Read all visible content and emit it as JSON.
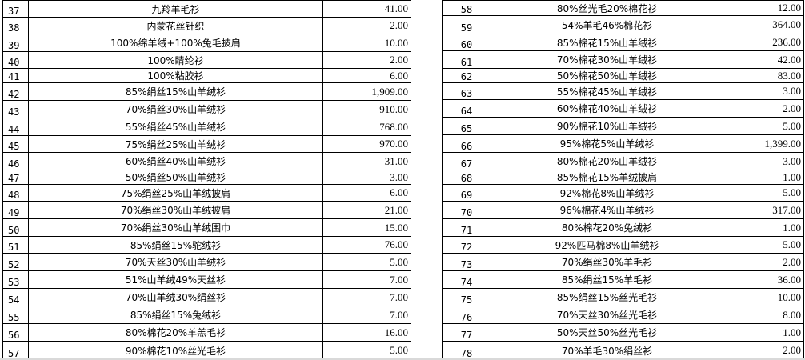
{
  "left_table": [
    {
      "no": "37",
      "name": "九羚羊毛衫",
      "value": "41.00"
    },
    {
      "no": "38",
      "name": "内蒙花丝针织",
      "value": "2.00"
    },
    {
      "no": "39",
      "name": "100%绵羊绒+100%兔毛披肩",
      "value": "10.00"
    },
    {
      "no": "40",
      "name": "100%睛纶衫",
      "value": "2.00"
    },
    {
      "no": "41",
      "name": "100%粘胶衫",
      "value": "6.00"
    },
    {
      "no": "42",
      "name": "85%绢丝15%山羊绒衫",
      "value": "1,909.00"
    },
    {
      "no": "43",
      "name": "70%绢丝30%山羊绒衫",
      "value": "910.00"
    },
    {
      "no": "44",
      "name": "55%绢丝45%山羊绒衫",
      "value": "768.00"
    },
    {
      "no": "45",
      "name": "75%绢丝25%山羊绒衫",
      "value": "970.00"
    },
    {
      "no": "46",
      "name": "60%绢丝40%山羊绒衫",
      "value": "31.00"
    },
    {
      "no": "47",
      "name": "50%绢丝50%山羊绒衫",
      "value": "3.00"
    },
    {
      "no": "48",
      "name": "75%绢丝25%山羊绒披肩",
      "value": "6.00"
    },
    {
      "no": "49",
      "name": "70%绢丝30%山羊绒披肩",
      "value": "21.00"
    },
    {
      "no": "50",
      "name": "70%绢丝30%山羊绒围巾",
      "value": "15.00"
    },
    {
      "no": "51",
      "name": "85%绢丝15%驼绒衫",
      "value": "76.00"
    },
    {
      "no": "52",
      "name": "70%天丝30%山羊绒衫",
      "value": "5.00"
    },
    {
      "no": "53",
      "name": "51%山羊绒49%天丝衫",
      "value": "7.00"
    },
    {
      "no": "54",
      "name": "70%山羊绒30%绢丝衫",
      "value": "7.00"
    },
    {
      "no": "55",
      "name": "85%绢丝15%兔绒衫",
      "value": "7.00"
    },
    {
      "no": "56",
      "name": "80%棉花20%羊羔毛衫",
      "value": "16.00"
    },
    {
      "no": "57",
      "name": "90%棉花10%丝光毛衫",
      "value": "5.00"
    }
  ],
  "right_table": [
    {
      "no": "58",
      "name": "80%丝光毛20%棉花衫",
      "value": "12.00"
    },
    {
      "no": "59",
      "name": "54%羊毛46%棉花衫",
      "value": "364.00"
    },
    {
      "no": "60",
      "name": "85%棉花15%山羊绒衫",
      "value": "236.00"
    },
    {
      "no": "61",
      "name": "70%棉花30%山羊绒衫",
      "value": "42.00"
    },
    {
      "no": "62",
      "name": "50%棉花50%山羊绒衫",
      "value": "83.00"
    },
    {
      "no": "63",
      "name": "55%棉花45%山羊绒衫",
      "value": "3.00"
    },
    {
      "no": "64",
      "name": "60%棉花40%山羊绒衫",
      "value": "2.00"
    },
    {
      "no": "65",
      "name": "90%棉花10%山羊绒衫",
      "value": "5.00"
    },
    {
      "no": "66",
      "name": "95%棉花5%山羊绒衫",
      "value": "1,399.00"
    },
    {
      "no": "67",
      "name": "80%棉花20%山羊绒衫",
      "value": "3.00"
    },
    {
      "no": "68",
      "name": "85%棉花15%羊绒披肩",
      "value": "1.00"
    },
    {
      "no": "69",
      "name": "92%棉花8%山羊绒衫",
      "value": "5.00"
    },
    {
      "no": "70",
      "name": "96%棉花4%山羊绒衫",
      "value": "317.00"
    },
    {
      "no": "71",
      "name": "80%棉花20%兔绒衫",
      "value": "1.00"
    },
    {
      "no": "72",
      "name": "92%匹马棉8%山羊绒衫",
      "value": "5.00"
    },
    {
      "no": "73",
      "name": "70%绢丝30%羊毛衫",
      "value": "2.00"
    },
    {
      "no": "74",
      "name": "85%绢丝15%羊毛衫",
      "value": "36.00"
    },
    {
      "no": "75",
      "name": "85%绢丝15%丝光毛衫",
      "value": "10.00"
    },
    {
      "no": "76",
      "name": "70%天丝30%丝光毛衫",
      "value": "8.00"
    },
    {
      "no": "77",
      "name": "50%天丝50%丝光毛衫",
      "value": "1.00"
    },
    {
      "no": "78",
      "name": "70%羊毛30%绢丝衫",
      "value": "2.00"
    }
  ]
}
